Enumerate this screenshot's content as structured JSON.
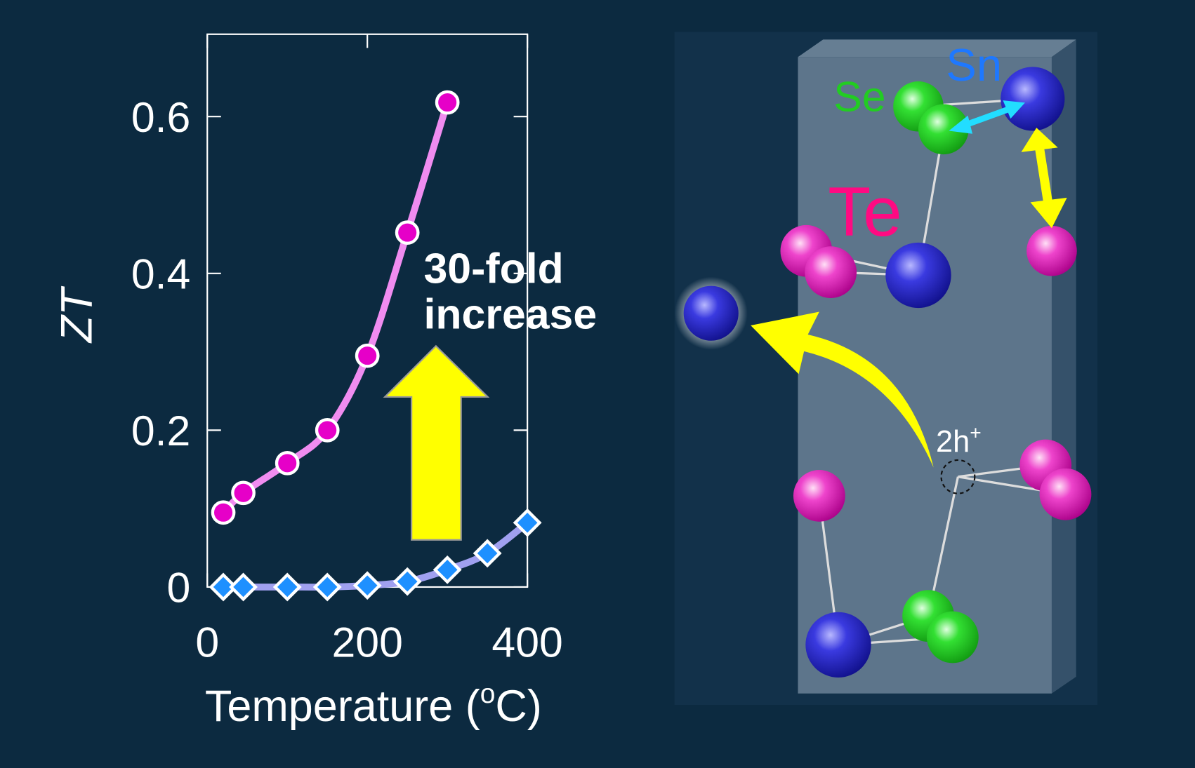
{
  "chart_data": {
    "type": "scatter",
    "xlabel": {
      "text": "Temperature (",
      "superscript": "o",
      "after": "C)"
    },
    "ylabel": "ZT",
    "annotation": [
      "30-fold",
      "increase"
    ],
    "xlim": [
      0,
      400
    ],
    "ylim": [
      0,
      0.705
    ],
    "xticks": [
      0,
      200,
      400
    ],
    "yticks": [
      0,
      0.2,
      0.4,
      0.6
    ],
    "series": [
      {
        "marker": "circle",
        "color": "#e600c8",
        "line_color": "#f08cf0",
        "x": [
          20,
          45,
          100,
          150,
          200,
          250,
          300
        ],
        "values": [
          0.095,
          0.12,
          0.158,
          0.2,
          0.295,
          0.452,
          0.618
        ]
      },
      {
        "marker": "diamond",
        "color": "#1e90ff",
        "line_color": "#a0a0f0",
        "x": [
          20,
          45,
          100,
          150,
          200,
          250,
          300,
          350,
          400
        ],
        "values": [
          0,
          0,
          0,
          0,
          0.002,
          0.007,
          0.022,
          0.043,
          0.082
        ]
      }
    ]
  },
  "diagram": {
    "labels": {
      "sn": "Sn",
      "se": "Se",
      "te": "Te",
      "hole": {
        "text": "2h",
        "superscript": "+"
      }
    }
  }
}
